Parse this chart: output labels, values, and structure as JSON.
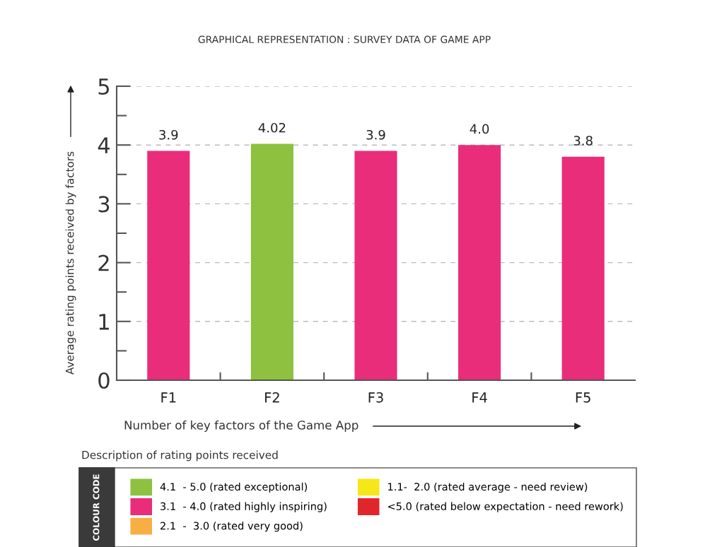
{
  "chart_data": {
    "type": "bar",
    "stacked": true,
    "title": "GRAPHICAL REPRESENTATION : SURVEY DATA OF GAME APP",
    "xlabel": "Number of key factors of the Game App",
    "ylabel": "Average rating points received by factors",
    "legend_title": "Description of rating points received",
    "annotations": [
      "COLOUR CODE"
    ],
    "categories": [
      "F1",
      "F2",
      "F3",
      "F4",
      "F5"
    ],
    "series": [
      {
        "name": "4.1  - 5.0 (rated exceptional)",
        "color": "#8dc13f",
        "values": [
          null,
          4.02,
          null,
          null,
          null
        ],
        "value_labels": [
          null,
          "4.02",
          null,
          null,
          null
        ]
      },
      {
        "name": "3.1  - 4.0 (rated highly inspiring)",
        "color": "#e92d7a",
        "values": [
          3.9,
          null,
          3.9,
          4.0,
          3.8
        ],
        "value_labels": [
          "3.9",
          null,
          "3.9",
          "4.0",
          "3.8"
        ]
      },
      {
        "name": "2.1  -  3.0 (rated very good)",
        "color": "#f8ae42",
        "values": [
          null,
          null,
          null,
          null,
          null
        ]
      },
      {
        "name": "1.1-  2.0 (rated average - need review)",
        "color": "#f7e618",
        "values": [
          null,
          null,
          null,
          null,
          null
        ]
      },
      {
        "name": "<5.0 (rated below expectation - need rework)",
        "color": "#e0262a",
        "values": [
          null,
          null,
          null,
          null,
          null
        ]
      }
    ],
    "ylim": [
      0,
      5
    ],
    "yticks": [
      0,
      {
        "value": 0.5,
        "label": null
      },
      1,
      {
        "value": 1.5,
        "label": null
      },
      2,
      {
        "value": 2.5,
        "label": null
      },
      3,
      {
        "value": 3.5,
        "label": null
      },
      4,
      {
        "value": 4.5,
        "label": null
      },
      5
    ],
    "grid": "y",
    "legend": "bottom"
  }
}
